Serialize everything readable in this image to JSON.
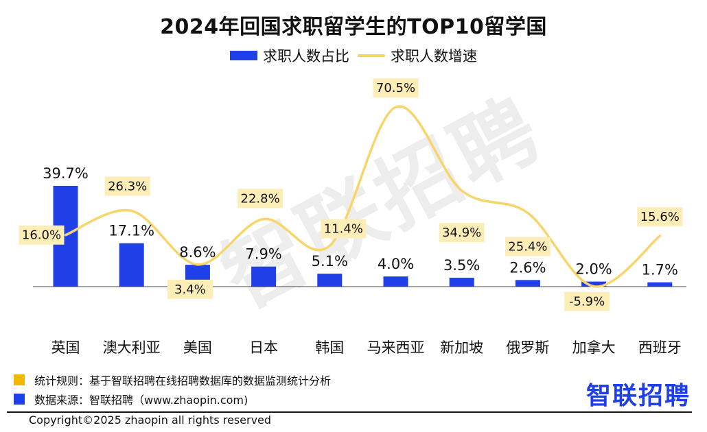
{
  "title": "2024年回国求职留学生的TOP10留学国",
  "watermark": "智联招聘",
  "legend": {
    "bar_label": "求职人数占比",
    "line_label": "求职人数增速"
  },
  "colors": {
    "bar": "#1f3fe8",
    "line": "#f8d56a",
    "label_bg": "#fdeeb8",
    "footnote_square_1": "#f5b800",
    "footnote_square_2": "#1f3fe8"
  },
  "chart_data": {
    "type": "bar",
    "title": "2024年回国求职留学生的TOP10留学国",
    "categories": [
      "英国",
      "澳大利亚",
      "美国",
      "日本",
      "韩国",
      "马来西亚",
      "新加坡",
      "俄罗斯",
      "加拿大",
      "西班牙"
    ],
    "series": [
      {
        "name": "求职人数占比",
        "type": "bar",
        "values": [
          39.7,
          17.1,
          8.6,
          7.9,
          5.1,
          4.0,
          3.5,
          2.6,
          2.0,
          1.7
        ],
        "labels": [
          "39.7%",
          "17.1%",
          "8.6%",
          "7.9%",
          "5.1%",
          "4.0%",
          "3.5%",
          "2.6%",
          "2.0%",
          "1.7%"
        ]
      },
      {
        "name": "求职人数增速",
        "type": "line",
        "smooth": true,
        "values": [
          16.0,
          26.3,
          3.4,
          22.8,
          11.4,
          70.5,
          34.9,
          25.4,
          -5.9,
          15.6
        ],
        "labels": [
          "16.0%",
          "26.3%",
          "3.4%",
          "22.8%",
          "11.4%",
          "70.5%",
          "34.9%",
          "25.4%",
          "-5.9%",
          "15.6%"
        ]
      }
    ],
    "legend": "top-center",
    "grid": false
  },
  "footnotes": [
    "统计规则：基于智联招聘在线招聘数据库的数据监测统计分析",
    "数据来源：智联招聘（www.zhaopin.com)"
  ],
  "logo": "智联招聘",
  "copyright": "Copyright©2025 zhaopin all rights reserved"
}
